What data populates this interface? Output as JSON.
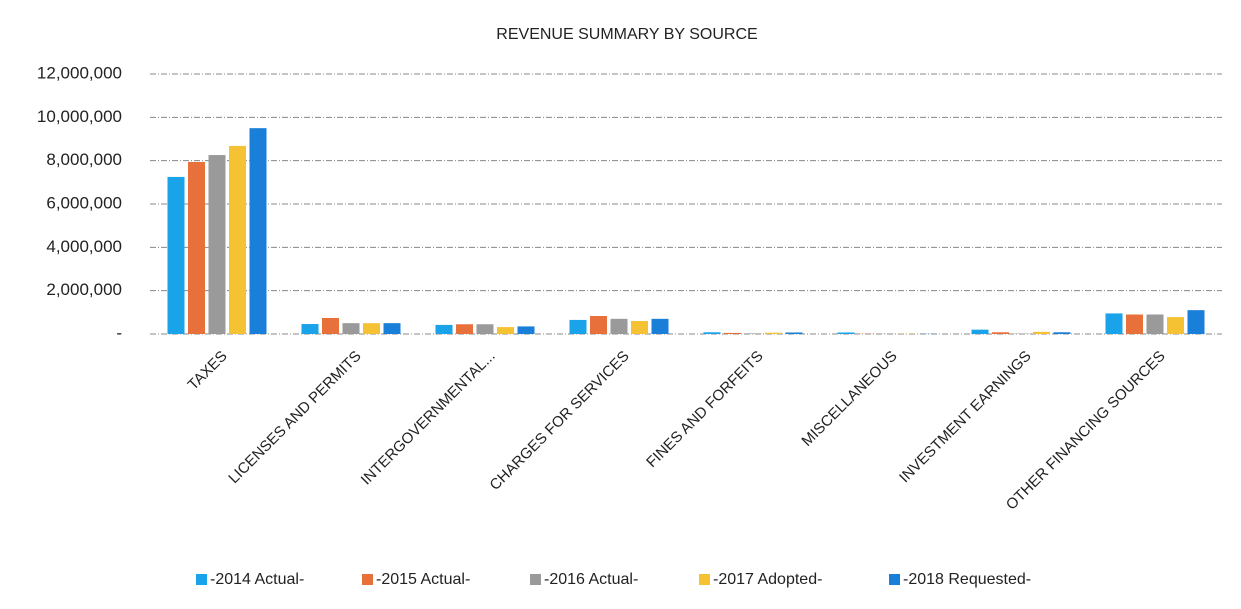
{
  "chart_data": {
    "type": "bar",
    "title": "REVENUE SUMMARY BY SOURCE",
    "categories": [
      "TAXES",
      "LICENSES AND PERMITS",
      "INTERGOVERNMENTAL...",
      "CHARGES FOR SERVICES",
      "FINES AND FORFEITS",
      "MISCELLANEOUS",
      "INVESTMENT EARNINGS",
      "OTHER FINANCING SOURCES"
    ],
    "series": [
      {
        "name": "-2014 Actual-",
        "color": "#1aa3e8",
        "values": [
          7250000,
          460000,
          420000,
          650000,
          80000,
          70000,
          200000,
          950000
        ]
      },
      {
        "name": "-2015 Actual-",
        "color": "#e8703a",
        "values": [
          7940000,
          740000,
          450000,
          830000,
          50000,
          10000,
          80000,
          900000
        ]
      },
      {
        "name": "-2016 Actual-",
        "color": "#9a9a9a",
        "values": [
          8260000,
          500000,
          450000,
          700000,
          30000,
          10000,
          20000,
          900000
        ]
      },
      {
        "name": "-2017 Adopted-",
        "color": "#f5c233",
        "values": [
          8680000,
          500000,
          320000,
          600000,
          60000,
          10000,
          100000,
          780000
        ]
      },
      {
        "name": "-2018 Requested-",
        "color": "#1a7fd8",
        "values": [
          9500000,
          500000,
          350000,
          700000,
          70000,
          10000,
          80000,
          1100000
        ]
      }
    ],
    "ylim": [
      0,
      12000000
    ],
    "yticks": [
      {
        "value": 0,
        "label": "-"
      },
      {
        "value": 2000000,
        "label": "2,000,000"
      },
      {
        "value": 4000000,
        "label": "4,000,000"
      },
      {
        "value": 6000000,
        "label": "6,000,000"
      },
      {
        "value": 8000000,
        "label": "8,000,000"
      },
      {
        "value": 10000000,
        "label": "10,000,000"
      },
      {
        "value": 12000000,
        "label": "12,000,000"
      }
    ],
    "grid": true,
    "legend": "bottom"
  }
}
